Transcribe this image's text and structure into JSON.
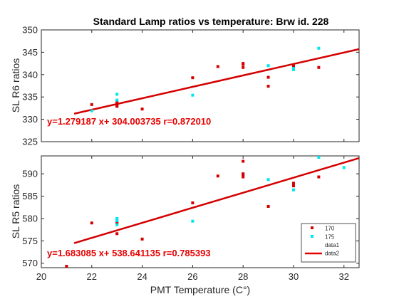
{
  "chart_data": [
    {
      "type": "scatter",
      "title": "Standard Lamp ratios vs temperature: Brw id. 228",
      "ylabel": "SL R6 ratios",
      "xlabel": "",
      "xlim": [
        20,
        32.6
      ],
      "ylim": [
        325,
        350
      ],
      "xticks": [
        20,
        22,
        24,
        26,
        28,
        30,
        32
      ],
      "yticks": [
        325,
        330,
        335,
        340,
        345,
        350
      ],
      "grid": false,
      "series": [
        {
          "name": "170",
          "color": "#d40000",
          "marker": "square",
          "x": [
            22,
            23,
            23,
            23,
            23,
            24,
            26,
            27,
            28,
            28,
            28,
            29,
            29,
            30,
            30,
            31
          ],
          "y": [
            333.3,
            333.5,
            333.0,
            332.9,
            333.9,
            332.3,
            339.3,
            341.8,
            342.3,
            341.6,
            342.5,
            339.4,
            337.4,
            341.7,
            341.9,
            341.6
          ]
        },
        {
          "name": "175",
          "color": "#00e5ee",
          "marker": "square",
          "x": [
            22,
            23,
            23,
            26,
            29,
            30,
            30,
            31
          ],
          "y": [
            331.9,
            335.6,
            334.3,
            335.4,
            342.0,
            341.1,
            341.4,
            345.9
          ]
        }
      ],
      "fit": {
        "name": "data2",
        "slope": 1.279187,
        "intercept": 304.003735,
        "x": [
          21.3,
          32.6
        ],
        "color": "#d40000"
      },
      "annotation": "y=1.279187 x+ 304.003735 r=0.872010"
    },
    {
      "type": "scatter",
      "title": "",
      "ylabel": "SL R5 ratios",
      "xlabel": "PMT Temperature (C°)",
      "xlim": [
        20,
        32.6
      ],
      "ylim": [
        569,
        594
      ],
      "xticks": [
        20,
        22,
        24,
        26,
        28,
        30,
        32
      ],
      "yticks": [
        570,
        575,
        580,
        585,
        590
      ],
      "grid": false,
      "series": [
        {
          "name": "170",
          "color": "#d40000",
          "marker": "square",
          "x": [
            21,
            22,
            23,
            23,
            23,
            24,
            26,
            27,
            28,
            28,
            28,
            28,
            29,
            30,
            30,
            31
          ],
          "y": [
            569.2,
            579.0,
            576.6,
            578.9,
            579.3,
            575.4,
            583.5,
            589.5,
            592.8,
            590.0,
            589.3,
            589.8,
            582.7,
            587.9,
            587.3,
            589.3
          ]
        },
        {
          "name": "175",
          "color": "#00e5ee",
          "marker": "square",
          "x": [
            23,
            23,
            23,
            26,
            29,
            30,
            31,
            32
          ],
          "y": [
            580.0,
            579.5,
            578.6,
            579.4,
            588.7,
            586.4,
            593.8,
            591.4
          ]
        }
      ],
      "fit": {
        "name": "data2",
        "slope": 1.683085,
        "intercept": 538.641135,
        "x": [
          21.3,
          32.6
        ],
        "color": "#d40000"
      },
      "annotation": "y=1.683085 x+ 538.641135 r=0.785393",
      "legend": {
        "position": "bottom-right",
        "entries": [
          "170",
          "175",
          "data1",
          "data2"
        ]
      }
    }
  ]
}
